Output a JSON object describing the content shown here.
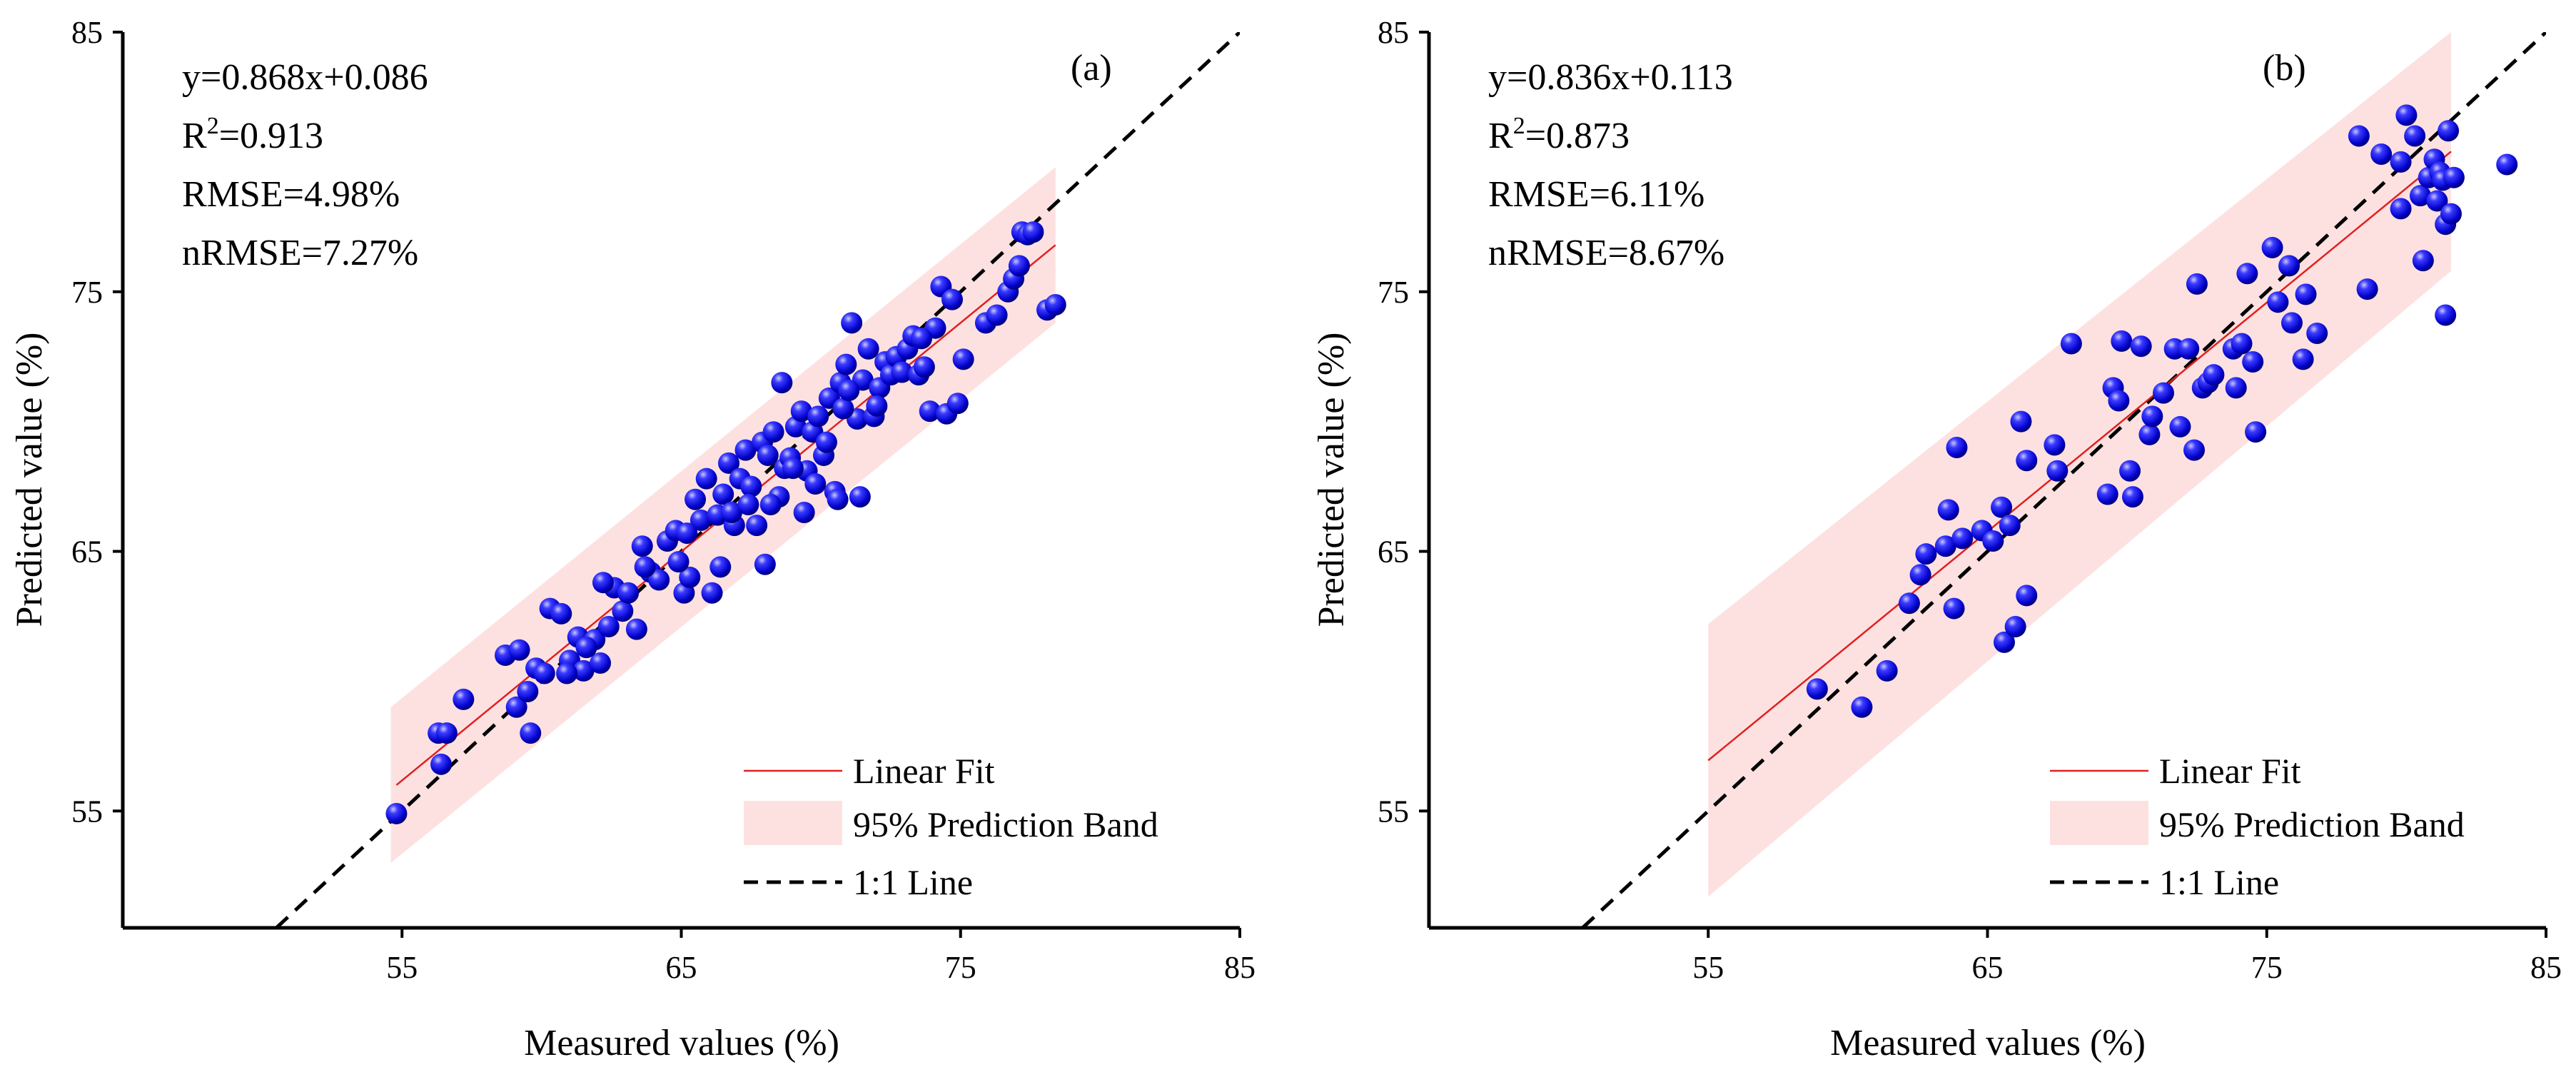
{
  "chart_data": [
    {
      "type": "scatter",
      "panel_label": "(a)",
      "xlabel": "Measured values (%)",
      "ylabel": "Predicted value (%)",
      "xlim": [
        45,
        85
      ],
      "ylim": [
        50.5,
        85
      ],
      "xticks": [
        55,
        65,
        75,
        85
      ],
      "yticks": [
        55,
        65,
        75,
        85
      ],
      "stats": {
        "equation": "y=0.868x+0.086",
        "r2_prefix": "R",
        "r2_exp": "2",
        "r2_value": "=0.913",
        "rmse": "RMSE=4.98%",
        "nrmse": "nRMSE=7.27%"
      },
      "fit": {
        "slope": 0.868,
        "intercept": 0.086,
        "x_range": [
          54.8,
          78.4
        ]
      },
      "band": {
        "x_range": [
          54.6,
          78.4
        ],
        "upper": [
          59.0,
          79.8
        ],
        "lower": [
          53.0,
          73.8
        ]
      },
      "legend": {
        "fit": "Linear Fit",
        "band": "95% Prediction Band",
        "line": "1:1 Line"
      },
      "points": [
        [
          54.8,
          54.9
        ],
        [
          56.3,
          58.0
        ],
        [
          56.6,
          58.0
        ],
        [
          56.4,
          56.8
        ],
        [
          57.2,
          59.3
        ],
        [
          58.7,
          61.0
        ],
        [
          59.2,
          61.2
        ],
        [
          59.6,
          58.0
        ],
        [
          59.1,
          59.0
        ],
        [
          59.5,
          59.6
        ],
        [
          59.8,
          60.5
        ],
        [
          60.1,
          60.3
        ],
        [
          60.3,
          62.8
        ],
        [
          60.7,
          62.6
        ],
        [
          61.0,
          60.8
        ],
        [
          61.3,
          61.7
        ],
        [
          61.5,
          60.4
        ],
        [
          61.9,
          61.6
        ],
        [
          62.1,
          60.7
        ],
        [
          62.4,
          62.1
        ],
        [
          62.6,
          63.6
        ],
        [
          62.9,
          62.7
        ],
        [
          63.1,
          63.4
        ],
        [
          63.4,
          62.0
        ],
        [
          63.6,
          65.2
        ],
        [
          63.9,
          64.2
        ],
        [
          64.2,
          63.9
        ],
        [
          64.5,
          65.4
        ],
        [
          64.8,
          65.8
        ],
        [
          65.1,
          63.4
        ],
        [
          65.3,
          64.0
        ],
        [
          65.5,
          67.0
        ],
        [
          65.7,
          66.2
        ],
        [
          65.9,
          67.8
        ],
        [
          66.1,
          63.4
        ],
        [
          66.3,
          66.4
        ],
        [
          66.5,
          67.2
        ],
        [
          66.7,
          68.4
        ],
        [
          66.9,
          66.0
        ],
        [
          67.1,
          67.8
        ],
        [
          67.3,
          68.9
        ],
        [
          67.5,
          67.5
        ],
        [
          67.7,
          66.0
        ],
        [
          67.9,
          69.2
        ],
        [
          68.1,
          68.7
        ],
        [
          68.3,
          69.6
        ],
        [
          68.5,
          67.1
        ],
        [
          68.7,
          68.2
        ],
        [
          68.9,
          68.6
        ],
        [
          69.1,
          69.8
        ],
        [
          69.3,
          70.4
        ],
        [
          69.5,
          68.1
        ],
        [
          69.7,
          69.6
        ],
        [
          69.9,
          70.2
        ],
        [
          70.1,
          68.7
        ],
        [
          70.3,
          70.9
        ],
        [
          70.5,
          67.3
        ],
        [
          70.7,
          71.5
        ],
        [
          70.9,
          72.2
        ],
        [
          71.1,
          73.8
        ],
        [
          71.3,
          70.1
        ],
        [
          71.5,
          71.6
        ],
        [
          71.7,
          72.8
        ],
        [
          71.9,
          70.2
        ],
        [
          72.1,
          71.3
        ],
        [
          72.3,
          72.3
        ],
        [
          72.5,
          71.8
        ],
        [
          72.7,
          72.5
        ],
        [
          72.9,
          71.9
        ],
        [
          73.1,
          72.8
        ],
        [
          73.3,
          73.3
        ],
        [
          73.5,
          71.8
        ],
        [
          73.7,
          72.1
        ],
        [
          73.9,
          70.4
        ],
        [
          74.1,
          73.6
        ],
        [
          74.3,
          75.2
        ],
        [
          74.5,
          70.3
        ],
        [
          74.7,
          74.7
        ],
        [
          74.9,
          70.7
        ],
        [
          75.1,
          72.4
        ],
        [
          75.9,
          73.8
        ],
        [
          76.3,
          74.1
        ],
        [
          76.7,
          75.0
        ],
        [
          76.9,
          75.5
        ],
        [
          77.1,
          76.0
        ],
        [
          77.2,
          77.3
        ],
        [
          77.4,
          77.2
        ],
        [
          77.6,
          77.3
        ],
        [
          78.1,
          74.3
        ],
        [
          78.4,
          74.5
        ],
        [
          68.0,
          64.5
        ],
        [
          69.4,
          66.5
        ],
        [
          64.9,
          64.6
        ],
        [
          63.7,
          64.4
        ],
        [
          62.2,
          63.8
        ],
        [
          60.9,
          60.3
        ],
        [
          61.6,
          61.3
        ],
        [
          65.2,
          65.7
        ],
        [
          66.8,
          66.5
        ],
        [
          68.6,
          71.5
        ],
        [
          70.2,
          69.2
        ],
        [
          71.4,
          67.1
        ],
        [
          70.6,
          67.0
        ],
        [
          69.8,
          67.6
        ],
        [
          66.4,
          64.4
        ],
        [
          67.4,
          66.8
        ],
        [
          68.2,
          66.8
        ],
        [
          69.0,
          68.2
        ],
        [
          70.8,
          70.5
        ],
        [
          72.0,
          70.6
        ],
        [
          73.6,
          73.2
        ],
        [
          71.0,
          71.2
        ]
      ]
    },
    {
      "type": "scatter",
      "panel_label": "(b)",
      "xlabel": "Measured values (%)",
      "ylabel": "Predicted value (%)",
      "xlim": [
        45,
        85
      ],
      "ylim": [
        50.5,
        85
      ],
      "xticks": [
        55,
        65,
        75,
        85
      ],
      "yticks": [
        55,
        65,
        75,
        85
      ],
      "stats": {
        "equation": "y=0.836x+0.113",
        "r2_prefix": "R",
        "r2_exp": "2",
        "r2_value": "=0.873",
        "rmse": "RMSE=6.11%",
        "nrmse": "nRMSE=8.67%"
      },
      "fit": {
        "slope": 0.836,
        "intercept": 0.113,
        "x_range": [
          55.0,
          81.6
        ]
      },
      "band": {
        "x_range": [
          55.0,
          81.6
        ],
        "upper": [
          62.2,
          85.0
        ],
        "lower": [
          51.7,
          75.8
        ]
      },
      "legend": {
        "fit": "Linear Fit",
        "band": "95% Prediction Band",
        "line": "1:1 Line"
      },
      "points": [
        [
          58.9,
          59.7
        ],
        [
          60.5,
          59.0
        ],
        [
          61.4,
          60.4
        ],
        [
          62.2,
          63.0
        ],
        [
          62.6,
          64.1
        ],
        [
          62.8,
          64.9
        ],
        [
          63.5,
          65.2
        ],
        [
          63.6,
          66.6
        ],
        [
          63.8,
          62.8
        ],
        [
          63.9,
          69.0
        ],
        [
          64.1,
          65.5
        ],
        [
          64.8,
          65.8
        ],
        [
          65.2,
          65.4
        ],
        [
          65.5,
          66.7
        ],
        [
          65.6,
          61.5
        ],
        [
          65.8,
          66.0
        ],
        [
          66.0,
          62.1
        ],
        [
          66.2,
          70.0
        ],
        [
          66.4,
          63.3
        ],
        [
          66.4,
          68.5
        ],
        [
          67.4,
          69.1
        ],
        [
          67.5,
          68.1
        ],
        [
          68.0,
          73.0
        ],
        [
          69.3,
          67.2
        ],
        [
          69.5,
          71.3
        ],
        [
          69.7,
          70.8
        ],
        [
          69.8,
          73.1
        ],
        [
          70.1,
          68.1
        ],
        [
          70.2,
          67.1
        ],
        [
          70.8,
          69.5
        ],
        [
          70.9,
          70.2
        ],
        [
          71.3,
          71.1
        ],
        [
          71.7,
          72.8
        ],
        [
          71.9,
          69.8
        ],
        [
          72.2,
          72.8
        ],
        [
          72.4,
          68.9
        ],
        [
          72.5,
          75.3
        ],
        [
          72.7,
          71.3
        ],
        [
          72.9,
          71.5
        ],
        [
          73.8,
          72.8
        ],
        [
          73.9,
          71.3
        ],
        [
          74.1,
          73.0
        ],
        [
          74.3,
          75.7
        ],
        [
          74.5,
          72.3
        ],
        [
          74.6,
          69.6
        ],
        [
          75.2,
          76.7
        ],
        [
          75.4,
          74.6
        ],
        [
          75.9,
          73.8
        ],
        [
          76.3,
          72.4
        ],
        [
          76.4,
          74.9
        ],
        [
          78.3,
          81.0
        ],
        [
          78.6,
          75.1
        ],
        [
          79.1,
          80.3
        ],
        [
          79.8,
          80.0
        ],
        [
          79.8,
          78.2
        ],
        [
          80.0,
          81.8
        ],
        [
          80.3,
          81.0
        ],
        [
          80.5,
          78.7
        ],
        [
          80.6,
          76.2
        ],
        [
          80.8,
          79.4
        ],
        [
          81.0,
          80.1
        ],
        [
          81.1,
          78.5
        ],
        [
          81.2,
          79.6
        ],
        [
          81.3,
          79.3
        ],
        [
          81.4,
          77.6
        ],
        [
          81.5,
          81.2
        ],
        [
          81.6,
          78.0
        ],
        [
          81.7,
          79.4
        ],
        [
          81.4,
          74.1
        ],
        [
          83.6,
          79.9
        ],
        [
          76.8,
          73.4
        ],
        [
          75.8,
          76.0
        ],
        [
          73.1,
          71.8
        ],
        [
          70.5,
          72.9
        ]
      ]
    }
  ]
}
